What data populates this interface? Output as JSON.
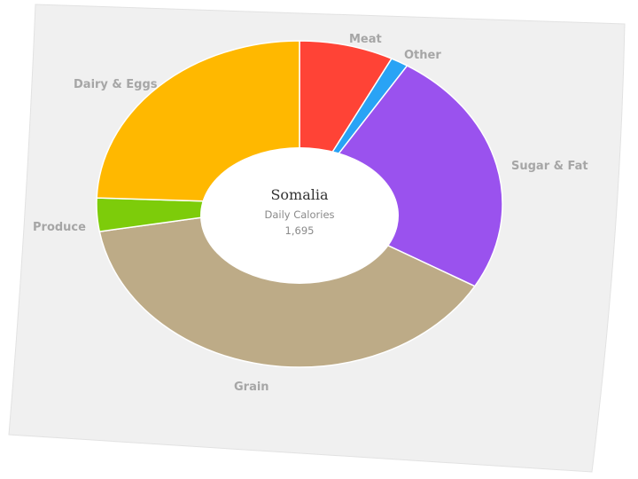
{
  "chart_data": {
    "type": "pie",
    "style": "donut",
    "center": {
      "title": "Somalia",
      "subtitle": "Daily Calories",
      "value": "1,695"
    },
    "slices": [
      {
        "label": "Meat",
        "value": 7.5,
        "color": "#ff4336"
      },
      {
        "label": "Other",
        "value": 1.4,
        "color": "#29a3f5"
      },
      {
        "label": "Sugar & Fat",
        "value": 24.5,
        "color": "#9a52ee"
      },
      {
        "label": "Grain",
        "value": 38.9,
        "color": "#bdab87"
      },
      {
        "label": "Produce",
        "value": 3.3,
        "color": "#7dcc0a"
      },
      {
        "label": "Dairy & Eggs",
        "value": 24.4,
        "color": "#ffb800"
      }
    ]
  },
  "colors": {
    "background_sheet": "#f0f0f0",
    "hole": "#ffffff",
    "label_text": "#a6a6a6"
  }
}
